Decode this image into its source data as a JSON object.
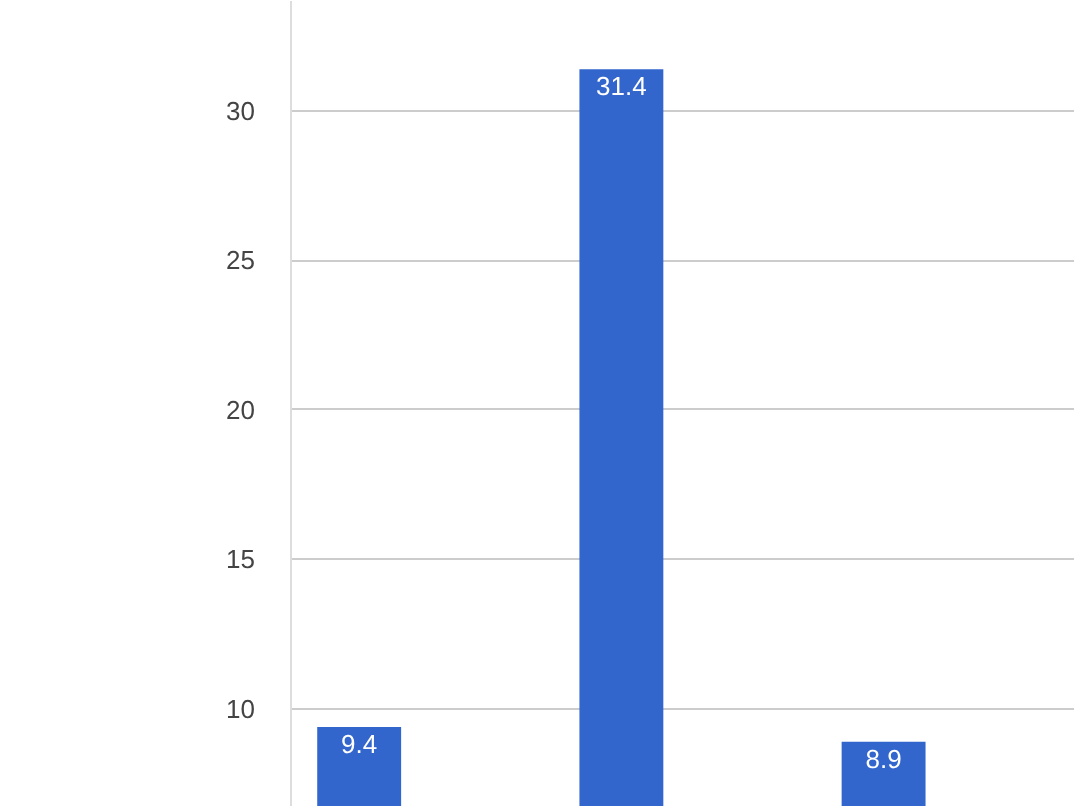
{
  "chart_data": {
    "type": "bar",
    "categories": [
      null,
      null,
      null
    ],
    "values": [
      9.4,
      31.4,
      8.9
    ],
    "color": "#3366cc",
    "ylim": [
      6.72,
      33.68
    ],
    "yticks": [
      10,
      15,
      20,
      25,
      30
    ],
    "grid": "y",
    "data_labels": true
  }
}
